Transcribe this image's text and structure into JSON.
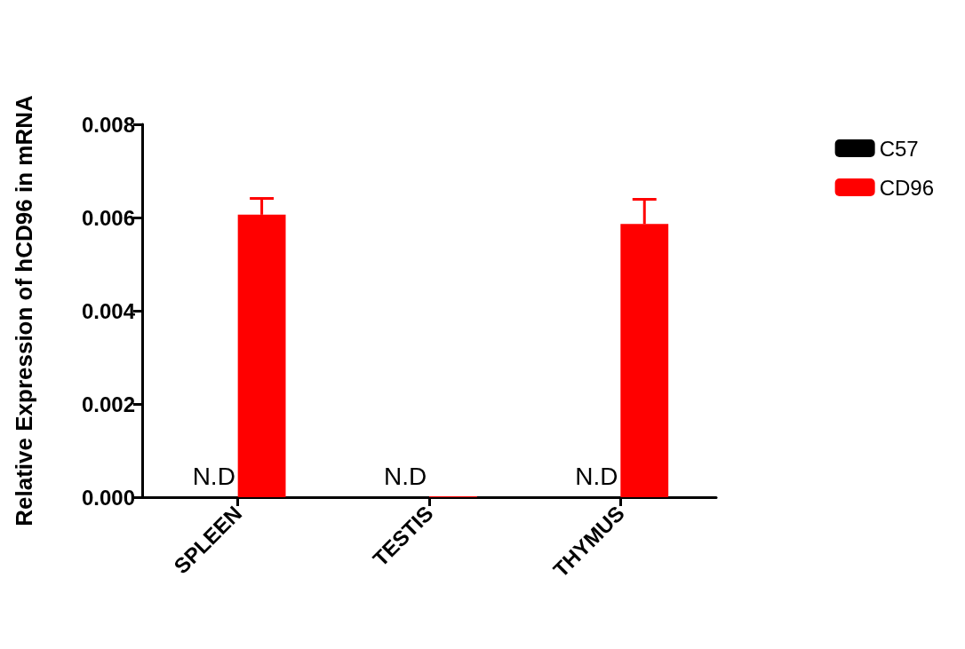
{
  "chart_data": {
    "type": "bar",
    "ylabel": "Relative Expression of hCD96 in mRNA",
    "categories": [
      "SPLEEN",
      "TESTIS",
      "THYMUS"
    ],
    "series": [
      {
        "name": "C57",
        "color": "#000000",
        "values": [
          null,
          null,
          null
        ]
      },
      {
        "name": "CD96",
        "color": "#ff0000",
        "values": [
          0.00606,
          2e-05,
          0.00586
        ],
        "errors": [
          [
            0.00606,
            0.00641
          ],
          null,
          [
            0.00586,
            0.00639
          ]
        ]
      }
    ],
    "ylim": [
      0,
      0.008
    ],
    "yticks": [
      {
        "value": 0,
        "label": "0.000"
      },
      {
        "value": 0.002,
        "label": "0.002"
      },
      {
        "value": 0.004,
        "label": "0.004"
      },
      {
        "value": 0.006,
        "label": "0.006"
      },
      {
        "value": 0.008,
        "label": "0.008"
      }
    ],
    "annotations": [
      "N.D",
      "N.D",
      "N.D"
    ],
    "legend": "right",
    "grid": false
  }
}
